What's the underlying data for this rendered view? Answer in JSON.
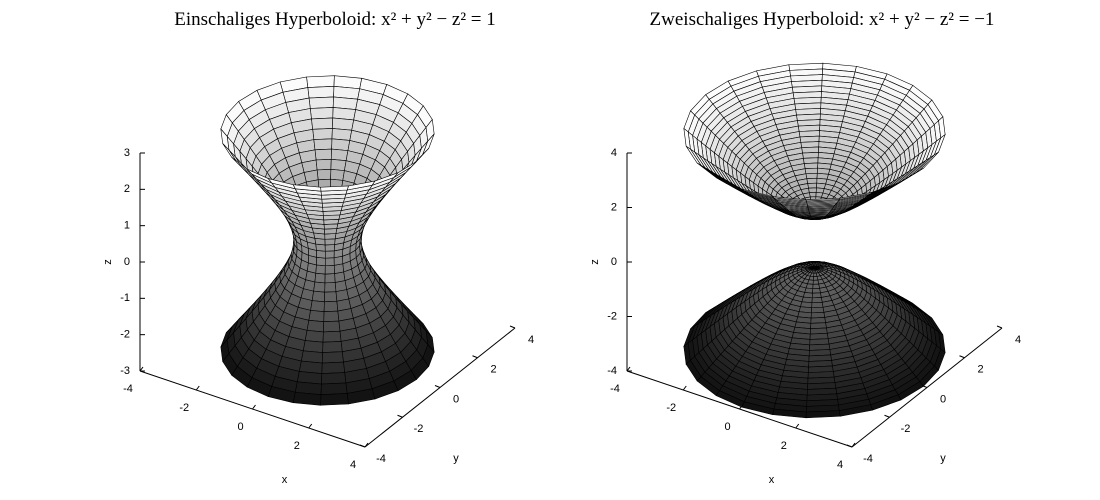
{
  "chart_data": [
    {
      "type": "surface",
      "title": "Einschaliges Hyperboloid: x² + y² − z² = 1",
      "constant": 1,
      "xlabel": "x",
      "ylabel": "y",
      "zlabel": "z",
      "xlim": [
        -4,
        4
      ],
      "ylim": [
        -4,
        4
      ],
      "zlim": [
        -3,
        3
      ],
      "xticks": [
        -4,
        -2,
        0,
        2,
        4
      ],
      "yticks": [
        -4,
        -2,
        0,
        2,
        4
      ],
      "zticks": [
        -3,
        -2,
        -1,
        0,
        1,
        2,
        3
      ],
      "colormap": "gray"
    },
    {
      "type": "surface",
      "title": "Zweischaliges Hyperboloid: x² + y² − z² = −1",
      "constant": -1,
      "xlabel": "x",
      "ylabel": "y",
      "zlabel": "z",
      "xlim": [
        -4,
        4
      ],
      "ylim": [
        -4,
        4
      ],
      "zlim": [
        -4,
        4
      ],
      "xticks": [
        -4,
        -2,
        0,
        2,
        4
      ],
      "yticks": [
        -4,
        -2,
        0,
        2,
        4
      ],
      "zticks": [
        -4,
        -2,
        0,
        2,
        4
      ],
      "colormap": "gray"
    }
  ]
}
